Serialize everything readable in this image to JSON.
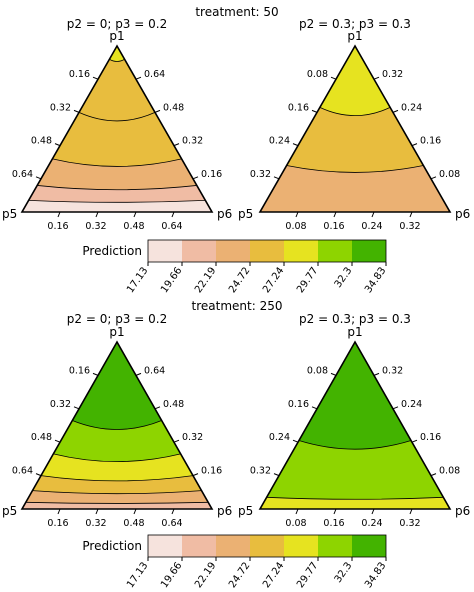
{
  "colors": {
    "scale": [
      "#f6e3dd",
      "#f0bca4",
      "#ebb173",
      "#e8bd3e",
      "#e6e320",
      "#8ed400",
      "#43b300"
    ],
    "outline": "#000000"
  },
  "chart_data": {
    "type": "heatmap",
    "description": "Ternary contour plots of Prediction over p1, p5, p6 in two treatment groups",
    "legend": {
      "title": "Prediction",
      "breaks": [
        "17.13",
        "19.66",
        "22.19",
        "24.72",
        "27.24",
        "29.77",
        "32.3",
        "34.83"
      ]
    },
    "panels": [
      {
        "treatment_title": "treatment: 50",
        "plots": [
          {
            "subtitle": "p2 = 0; p3 = 0.2",
            "vertices": {
              "top": "p1",
              "left": "p5",
              "right": "p6"
            },
            "left_ticks": [
              "0.16",
              "0.32",
              "0.48",
              "0.64"
            ],
            "right_ticks": [
              "0.64",
              "0.48",
              "0.32",
              "0.16"
            ],
            "bottom_ticks": [
              "0.16",
              "0.32",
              "0.48",
              "0.64"
            ],
            "contour_fractions": [
              0.08,
              0.4,
              0.68,
              0.84,
              0.93
            ],
            "band_colors": [
              4,
              3,
              3,
              2,
              1,
              0
            ]
          },
          {
            "subtitle": "p2 = 0.3; p3 = 0.3",
            "vertices": {
              "top": "p1",
              "left": "p5",
              "right": "p6"
            },
            "left_ticks": [
              "0.08",
              "0.16",
              "0.24",
              "0.32"
            ],
            "right_ticks": [
              "0.32",
              "0.24",
              "0.16",
              "0.08"
            ],
            "bottom_ticks": [
              "0.08",
              "0.16",
              "0.24",
              "0.32"
            ],
            "contour_fractions": [
              0.37,
              0.72
            ],
            "band_colors": [
              4,
              3,
              2
            ]
          }
        ]
      },
      {
        "treatment_title": "treatment: 250",
        "plots": [
          {
            "subtitle": "p2 = 0; p3 = 0.2",
            "vertices": {
              "top": "p1",
              "left": "p5",
              "right": "p6"
            },
            "left_ticks": [
              "0.16",
              "0.32",
              "0.48",
              "0.64"
            ],
            "right_ticks": [
              "0.64",
              "0.48",
              "0.32",
              "0.16"
            ],
            "bottom_ticks": [
              "0.16",
              "0.32",
              "0.48",
              "0.64"
            ],
            "contour_fractions": [
              0.47,
              0.67,
              0.8,
              0.89,
              0.96
            ],
            "band_colors": [
              6,
              5,
              4,
              3,
              2,
              1
            ]
          },
          {
            "subtitle": "p2 = 0.3; p3 = 0.3",
            "vertices": {
              "top": "p1",
              "left": "p5",
              "right": "p6"
            },
            "left_ticks": [
              "0.08",
              "0.16",
              "0.24",
              "0.32"
            ],
            "right_ticks": [
              "0.32",
              "0.24",
              "0.16",
              "0.08"
            ],
            "bottom_ticks": [
              "0.08",
              "0.16",
              "0.24",
              "0.32"
            ],
            "contour_fractions": [
              0.59,
              0.93
            ],
            "band_colors": [
              6,
              5,
              4
            ]
          }
        ]
      }
    ]
  }
}
